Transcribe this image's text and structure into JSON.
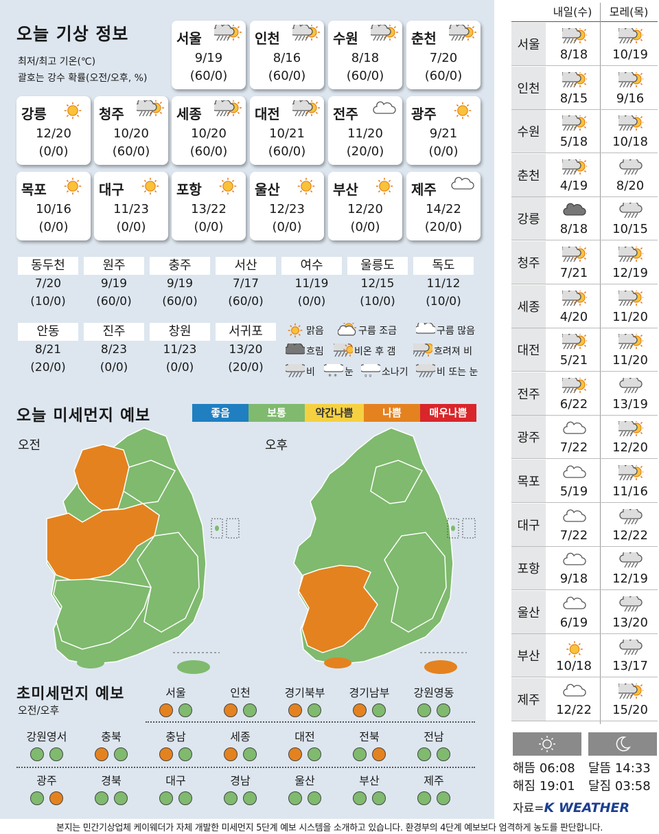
{
  "header": {
    "title": "오늘 기상 정보",
    "sub1": "최저/최고 기온(℃)",
    "sub2": "괄호는 강수 확률(오전/오후, %)"
  },
  "cards": [
    {
      "name": "서울",
      "icon": "rain-sun-icon",
      "temp": "9/19",
      "prob": "(60/0)"
    },
    {
      "name": "인천",
      "icon": "rain-sun-icon",
      "temp": "8/16",
      "prob": "(60/0)"
    },
    {
      "name": "수원",
      "icon": "rain-sun-icon",
      "temp": "8/18",
      "prob": "(60/0)"
    },
    {
      "name": "춘천",
      "icon": "rain-sun-icon",
      "temp": "7/20",
      "prob": "(60/0)"
    },
    {
      "name": "강릉",
      "icon": "sun-icon",
      "temp": "12/20",
      "prob": "(0/0)"
    },
    {
      "name": "청주",
      "icon": "rain-sun-icon",
      "temp": "10/20",
      "prob": "(60/0)"
    },
    {
      "name": "세종",
      "icon": "rain-sun-icon",
      "temp": "10/20",
      "prob": "(60/0)"
    },
    {
      "name": "대전",
      "icon": "rain-sun-icon",
      "temp": "10/21",
      "prob": "(60/0)"
    },
    {
      "name": "전주",
      "icon": "cloudy-icon",
      "temp": "11/20",
      "prob": "(20/0)"
    },
    {
      "name": "광주",
      "icon": "sun-icon",
      "temp": "9/21",
      "prob": "(0/0)"
    },
    {
      "name": "목포",
      "icon": "sun-icon",
      "temp": "10/16",
      "prob": "(0/0)"
    },
    {
      "name": "대구",
      "icon": "sun-icon",
      "temp": "11/23",
      "prob": "(0/0)"
    },
    {
      "name": "포항",
      "icon": "sun-icon",
      "temp": "13/22",
      "prob": "(0/0)"
    },
    {
      "name": "울산",
      "icon": "sun-icon",
      "temp": "12/23",
      "prob": "(0/0)"
    },
    {
      "name": "부산",
      "icon": "sun-icon",
      "temp": "12/20",
      "prob": "(0/0)"
    },
    {
      "name": "제주",
      "icon": "cloudy-icon",
      "temp": "14/22",
      "prob": "(20/0)"
    }
  ],
  "small_cities": [
    {
      "name": "동두천",
      "temp": "7/20",
      "prob": "(10/0)"
    },
    {
      "name": "원주",
      "temp": "9/19",
      "prob": "(60/0)"
    },
    {
      "name": "충주",
      "temp": "9/19",
      "prob": "(60/0)"
    },
    {
      "name": "서산",
      "temp": "7/17",
      "prob": "(60/0)"
    },
    {
      "name": "여수",
      "temp": "11/19",
      "prob": "(0/0)"
    },
    {
      "name": "울릉도",
      "temp": "12/15",
      "prob": "(10/0)"
    },
    {
      "name": "독도",
      "temp": "11/12",
      "prob": "(10/0)"
    },
    {
      "name": "안동",
      "temp": "8/21",
      "prob": "(20/0)"
    },
    {
      "name": "진주",
      "temp": "8/23",
      "prob": "(0/0)"
    },
    {
      "name": "창원",
      "temp": "11/23",
      "prob": "(0/0)"
    },
    {
      "name": "서귀포",
      "temp": "13/20",
      "prob": "(20/0)"
    }
  ],
  "legend": [
    {
      "icon": "sun-icon",
      "label": "맑음"
    },
    {
      "icon": "partly-cloudy-icon",
      "label": "구름 조금"
    },
    {
      "icon": "cloudy-icon",
      "label": "구름 많음"
    },
    {
      "icon": "overcast-icon",
      "label": "흐림"
    },
    {
      "icon": "rain-clearing-icon",
      "label": "비온 후 갬"
    },
    {
      "icon": "rain-sun-icon",
      "label": "흐려져 비"
    },
    {
      "icon": "rain-icon",
      "label": "비"
    },
    {
      "icon": "snow-icon",
      "label": "눈"
    },
    {
      "icon": "shower-icon",
      "label": "소나기"
    },
    {
      "icon": "rain-snow-icon",
      "label": "비 또는 눈"
    }
  ],
  "pm": {
    "title": "오늘 미세먼지 예보",
    "am": "오전",
    "pm": "오후",
    "levels": [
      {
        "label": "좋음",
        "color": "#1f7fc1"
      },
      {
        "label": "보통",
        "color": "#7fba6e"
      },
      {
        "label": "약간나쁨",
        "color": "#f5d142"
      },
      {
        "label": "나쁨",
        "color": "#e4821f"
      },
      {
        "label": "매우나쁨",
        "color": "#d8262b"
      }
    ]
  },
  "fine": {
    "title": "초미세먼지 예보",
    "sub": "오전/오후",
    "regions": [
      {
        "name": "서울",
        "am": "나쁨",
        "pm": "보통"
      },
      {
        "name": "인천",
        "am": "나쁨",
        "pm": "보통"
      },
      {
        "name": "경기북부",
        "am": "나쁨",
        "pm": "보통"
      },
      {
        "name": "경기남부",
        "am": "나쁨",
        "pm": "보통"
      },
      {
        "name": "강원영동",
        "am": "보통",
        "pm": "보통"
      },
      {
        "name": "강원영서",
        "am": "보통",
        "pm": "보통"
      },
      {
        "name": "충북",
        "am": "나쁨",
        "pm": "보통"
      },
      {
        "name": "충남",
        "am": "나쁨",
        "pm": "보통"
      },
      {
        "name": "세종",
        "am": "나쁨",
        "pm": "보통"
      },
      {
        "name": "대전",
        "am": "나쁨",
        "pm": "보통"
      },
      {
        "name": "전북",
        "am": "보통",
        "pm": "나쁨"
      },
      {
        "name": "전남",
        "am": "보통",
        "pm": "보통"
      },
      {
        "name": "광주",
        "am": "보통",
        "pm": "나쁨"
      },
      {
        "name": "경북",
        "am": "보통",
        "pm": "보통"
      },
      {
        "name": "대구",
        "am": "보통",
        "pm": "보통"
      },
      {
        "name": "경남",
        "am": "보통",
        "pm": "보통"
      },
      {
        "name": "울산",
        "am": "보통",
        "pm": "보통"
      },
      {
        "name": "부산",
        "am": "보통",
        "pm": "보통"
      },
      {
        "name": "제주",
        "am": "보통",
        "pm": "보통"
      }
    ]
  },
  "forecast": {
    "day1": "내일(수)",
    "day2": "모레(목)",
    "rows": [
      {
        "name": "서울",
        "d1_icon": "rain-sun-icon",
        "d1": "8/18",
        "d2_icon": "rain-sun-icon",
        "d2": "10/19"
      },
      {
        "name": "인천",
        "d1_icon": "rain-sun-icon",
        "d1": "8/15",
        "d2_icon": "rain-sun-icon",
        "d2": "9/16"
      },
      {
        "name": "수원",
        "d1_icon": "rain-sun-icon",
        "d1": "5/18",
        "d2_icon": "rain-sun-icon",
        "d2": "10/18"
      },
      {
        "name": "춘천",
        "d1_icon": "rain-sun-icon",
        "d1": "4/19",
        "d2_icon": "rain-icon",
        "d2": "8/20"
      },
      {
        "name": "강릉",
        "d1_icon": "overcast-icon",
        "d1": "8/18",
        "d2_icon": "rain-icon",
        "d2": "10/15"
      },
      {
        "name": "청주",
        "d1_icon": "rain-sun-icon",
        "d1": "7/21",
        "d2_icon": "rain-sun-icon",
        "d2": "12/19"
      },
      {
        "name": "세종",
        "d1_icon": "rain-sun-icon",
        "d1": "4/20",
        "d2_icon": "rain-sun-icon",
        "d2": "11/20"
      },
      {
        "name": "대전",
        "d1_icon": "rain-sun-icon",
        "d1": "5/21",
        "d2_icon": "rain-sun-icon",
        "d2": "11/20"
      },
      {
        "name": "전주",
        "d1_icon": "rain-sun-icon",
        "d1": "6/22",
        "d2_icon": "rain-icon",
        "d2": "13/19"
      },
      {
        "name": "광주",
        "d1_icon": "cloudy-icon",
        "d1": "7/22",
        "d2_icon": "rain-sun-icon",
        "d2": "12/20"
      },
      {
        "name": "목포",
        "d1_icon": "cloudy-icon",
        "d1": "5/19",
        "d2_icon": "rain-sun-icon",
        "d2": "11/16"
      },
      {
        "name": "대구",
        "d1_icon": "cloudy-icon",
        "d1": "7/22",
        "d2_icon": "rain-icon",
        "d2": "12/22"
      },
      {
        "name": "포항",
        "d1_icon": "cloudy-icon",
        "d1": "9/18",
        "d2_icon": "rain-icon",
        "d2": "12/19"
      },
      {
        "name": "울산",
        "d1_icon": "cloudy-icon",
        "d1": "6/19",
        "d2_icon": "rain-icon",
        "d2": "13/20"
      },
      {
        "name": "부산",
        "d1_icon": "sun-icon",
        "d1": "10/18",
        "d2_icon": "rain-icon",
        "d2": "13/17"
      },
      {
        "name": "제주",
        "d1_icon": "cloudy-icon",
        "d1": "12/22",
        "d2_icon": "rain-sun-icon",
        "d2": "15/20"
      }
    ]
  },
  "astro": {
    "sunrise": "해뜸 06:08",
    "sunset": "해짐 19:01",
    "moonrise": "달뜸 14:33",
    "moonset": "달짐 03:58"
  },
  "source": {
    "label": "자료=",
    "brand": "K WEATHER"
  },
  "footer": "본지는 민간기상업체 케이웨더가 자체 개발한 미세먼지 5단계 예보 시스템을 소개하고 있습니다. 환경부의 4단계 예보보다 엄격하게 농도를 판단합니다."
}
